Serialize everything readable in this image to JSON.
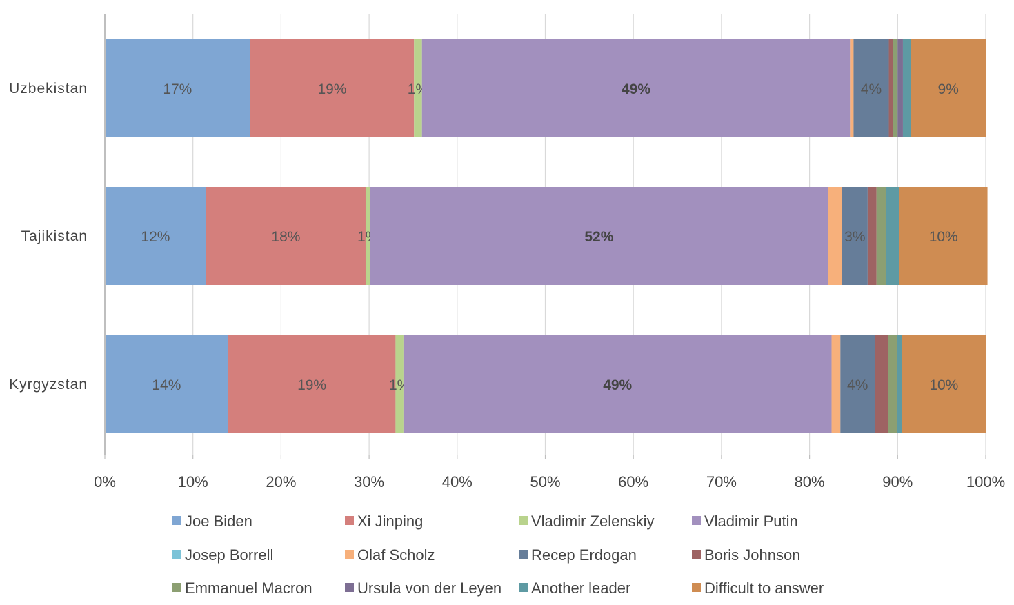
{
  "chart_data": {
    "type": "bar",
    "orientation": "horizontal",
    "stacked": true,
    "percent_stacked": true,
    "categories": [
      "Uzbekistan",
      "Tajikistan",
      "Kyrgyzstan"
    ],
    "series": [
      {
        "name": "Joe Biden",
        "color": "#7fa6d3",
        "values": [
          16.5,
          11.5,
          14
        ],
        "labels": [
          "17%",
          "12%",
          "14%"
        ]
      },
      {
        "name": "Xi Jinping",
        "color": "#d47f7c",
        "values": [
          18.6,
          18.1,
          19.0
        ],
        "labels": [
          "19%",
          "18%",
          "19%"
        ]
      },
      {
        "name": "Vladimir Zelenskiy",
        "color": "#b9d38d",
        "values": [
          0.9,
          0.5,
          0.9
        ],
        "labels": [
          "1%",
          "1%",
          "1%"
        ]
      },
      {
        "name": "Vladimir Putin",
        "color": "#a290be",
        "values": [
          48.6,
          52.0,
          48.6
        ],
        "labels": [
          "49%",
          "52%",
          "49%"
        ]
      },
      {
        "name": "Josep Borrell",
        "color": "#7cc3d8",
        "values": [
          0,
          0,
          0
        ],
        "labels": [
          "",
          "",
          ""
        ]
      },
      {
        "name": "Olaf Scholz",
        "color": "#f7b07b",
        "values": [
          0.4,
          1.6,
          1.0
        ],
        "labels": [
          "",
          "",
          ""
        ]
      },
      {
        "name": "Recep Erdogan",
        "color": "#667d99",
        "values": [
          4.0,
          2.9,
          3.9
        ],
        "labels": [
          "4%",
          "3%",
          "4%"
        ]
      },
      {
        "name": "Boris Johnson",
        "color": "#9e6363",
        "values": [
          0.5,
          1.0,
          1.5
        ],
        "labels": [
          "",
          "",
          ""
        ]
      },
      {
        "name": "Emmanuel Macron",
        "color": "#8c9f72",
        "values": [
          0.5,
          1.1,
          1.0
        ],
        "labels": [
          "",
          "",
          ""
        ]
      },
      {
        "name": "Ursula von der Leyen",
        "color": "#7d6e93",
        "values": [
          0.6,
          0,
          0
        ],
        "labels": [
          "",
          "",
          ""
        ]
      },
      {
        "name": "Another leader",
        "color": "#5e9aa3",
        "values": [
          0.9,
          1.5,
          0.6
        ],
        "labels": [
          "",
          "",
          ""
        ]
      },
      {
        "name": "Difficult to answer",
        "color": "#cf8c52",
        "values": [
          8.5,
          10.0,
          9.5
        ],
        "labels": [
          "9%",
          "10%",
          "10%"
        ]
      }
    ],
    "bold_series": [
      "Vladimir Putin"
    ],
    "xlim": [
      0,
      100
    ],
    "x_ticks": [
      "0%",
      "10%",
      "20%",
      "30%",
      "40%",
      "50%",
      "60%",
      "70%",
      "80%",
      "90%",
      "100%"
    ],
    "grid": true,
    "legend_position": "bottom",
    "title": "",
    "xlabel": "",
    "ylabel": ""
  }
}
